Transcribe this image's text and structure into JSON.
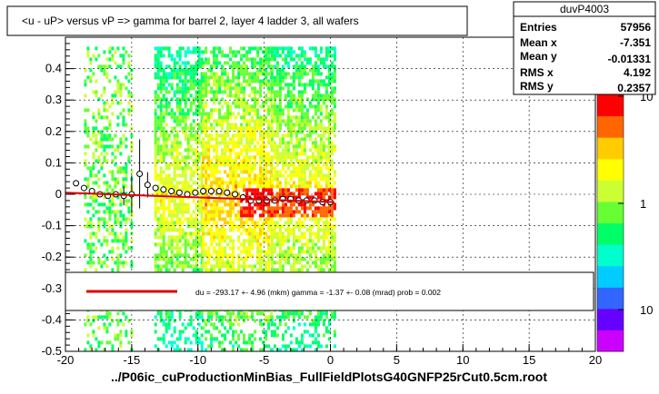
{
  "chart_data": {
    "type": "heatmap",
    "title": "<u - uP>       versus   vP =>  gamma for barrel 2, layer 4 ladder 3, all wafers",
    "xlabel": "../P06ic_cuProductionMinBias_FullFieldPlotsG40GNFP25rCut0.5cm.root",
    "ylabel": "",
    "xlim": [
      -20,
      20
    ],
    "ylim": [
      -0.5,
      0.5
    ],
    "x_ticks": [
      -20,
      -15,
      -10,
      -5,
      0,
      5,
      10,
      15,
      20
    ],
    "y_ticks": [
      -0.5,
      -0.4,
      -0.3,
      -0.2,
      -0.1,
      0,
      0.1,
      0.2,
      0.3,
      0.4
    ],
    "grid": "dashed",
    "stats": {
      "name": "duvP4003",
      "rows": [
        {
          "label": "Entries",
          "value": "57956"
        },
        {
          "label": "Mean x",
          "value": "-7.351"
        },
        {
          "label": "Mean y",
          "value": "-0.01331"
        },
        {
          "label": "RMS x",
          "value": "4.192"
        },
        {
          "label": "RMS y",
          "value": "0.2357"
        }
      ]
    },
    "color_scale": {
      "type": "log",
      "tick_labels": [
        "10",
        "1",
        "10"
      ],
      "colors": [
        "#ff0000",
        "#ff6600",
        "#ffcc00",
        "#ffff00",
        "#ccff33",
        "#66ff33",
        "#00ff66",
        "#00ffcc",
        "#00ccff",
        "#3366ff",
        "#6600ff",
        "#cc00ff"
      ]
    },
    "density_regions": [
      {
        "x": [
          -18.6,
          -15.0
        ],
        "y": [
          -0.5,
          0.47
        ],
        "level": 0.35,
        "pattern": "sparse-green"
      },
      {
        "x": [
          -13.3,
          -9.7
        ],
        "y": [
          -0.5,
          0.47
        ],
        "level": 0.55,
        "pattern": "yellow-green"
      },
      {
        "x": [
          -9.7,
          -4.5
        ],
        "y": [
          -0.5,
          0.47
        ],
        "level": 0.7,
        "pattern": "yellow-red"
      },
      {
        "x": [
          -4.5,
          0.3
        ],
        "y": [
          -0.5,
          0.47
        ],
        "level": 0.6,
        "pattern": "yellow-red"
      }
    ],
    "profile_points": {
      "x": [
        -19.2,
        -18.6,
        -18.0,
        -17.4,
        -16.8,
        -16.2,
        -15.6,
        -15.0,
        -14.4,
        -13.8,
        -13.2,
        -12.6,
        -12.0,
        -11.4,
        -10.8,
        -10.2,
        -9.6,
        -9.0,
        -8.4,
        -7.8,
        -7.2,
        -6.6,
        -6.0,
        -5.4,
        -4.8,
        -4.2,
        -3.6,
        -3.0,
        -2.4,
        -1.8,
        -1.2,
        -0.6,
        0.0
      ],
      "y": [
        0.035,
        0.02,
        0.01,
        0.0,
        -0.005,
        0.0,
        -0.005,
        0.0,
        0.065,
        0.03,
        0.02,
        0.015,
        0.01,
        0.005,
        0.0,
        0.005,
        0.01,
        0.01,
        0.01,
        0.005,
        0.0,
        -0.01,
        -0.02,
        -0.02,
        -0.02,
        -0.02,
        -0.015,
        -0.015,
        -0.02,
        -0.02,
        -0.02,
        -0.025,
        -0.025
      ],
      "err": [
        0.01,
        0.008,
        0.006,
        0.006,
        0.005,
        0.005,
        0.03,
        0.06,
        0.11,
        0.04,
        0.006,
        0.005,
        0.004,
        0.004,
        0.004,
        0.003,
        0.003,
        0.003,
        0.003,
        0.003,
        0.003,
        0.003,
        0.003,
        0.003,
        0.003,
        0.003,
        0.003,
        0.003,
        0.003,
        0.003,
        0.003,
        0.003,
        0.003
      ]
    },
    "fit_line": {
      "x": [
        -20,
        0.3
      ],
      "y": [
        0.005,
        -0.025
      ],
      "color": "#dd0000"
    },
    "legend": {
      "placement": "bottom",
      "text": "du = -293.17 +-  4.96 (mkm) gamma =   -1.37 +-  0.08 (mrad) prob = 0.002",
      "line_color": "#dd0000"
    }
  }
}
